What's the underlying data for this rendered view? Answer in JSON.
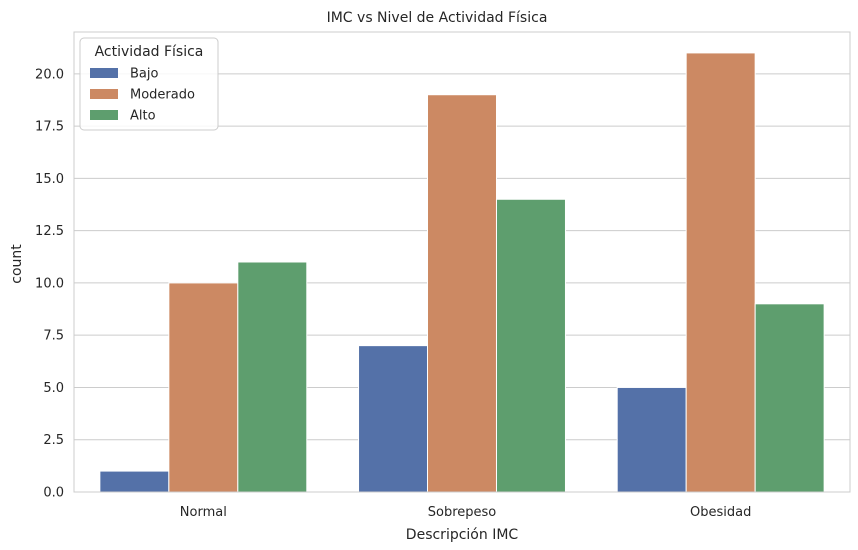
{
  "chart_data": {
    "type": "bar",
    "title": "IMC vs Nivel de Actividad Física",
    "xlabel": "Descripción IMC",
    "ylabel": "count",
    "categories": [
      "Normal",
      "Sobrepeso",
      "Obesidad"
    ],
    "series": [
      {
        "name": "Bajo",
        "values": [
          1,
          7,
          5
        ],
        "color": "#5471a8"
      },
      {
        "name": "Moderado",
        "values": [
          10,
          19,
          21
        ],
        "color": "#cc8963"
      },
      {
        "name": "Alto",
        "values": [
          11,
          14,
          9
        ],
        "color": "#5e9e6e"
      }
    ],
    "ylim": [
      0,
      22
    ],
    "yticks": [
      0,
      2.5,
      5,
      7.5,
      10,
      12.5,
      15,
      17.5,
      20
    ],
    "ytick_labels": [
      "0.0",
      "2.5",
      "5.0",
      "7.5",
      "10.0",
      "12.5",
      "15.0",
      "17.5",
      "20.0"
    ],
    "legend": {
      "title": "Actividad Física",
      "position": "top-left"
    },
    "grid": "horizontal"
  }
}
